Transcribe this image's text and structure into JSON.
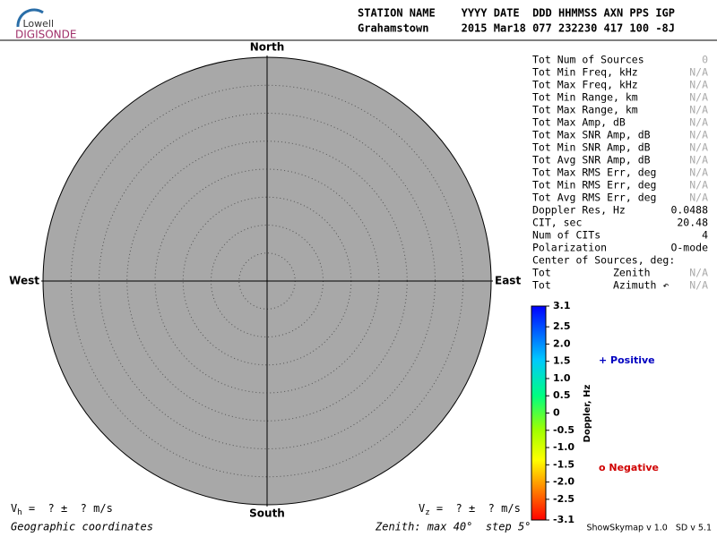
{
  "logo": {
    "top": "Lowell",
    "bottom": "DIGISONDE"
  },
  "header": {
    "line1": "STATION NAME    YYYY DATE  DDD HHMMSS AXN PPS IGP",
    "line2": "Grahamstown     2015 Mar18 077 232230 417 100 -8J"
  },
  "compass": {
    "north": "North",
    "south": "South",
    "east": "East",
    "west": "West"
  },
  "stats": [
    {
      "label": "Tot Num of Sources",
      "value": "0"
    },
    {
      "label": "Tot Min Freq, kHz",
      "value": "N/A"
    },
    {
      "label": "Tot Max Freq, kHz",
      "value": "N/A"
    },
    {
      "label": "Tot Min Range, km",
      "value": "N/A"
    },
    {
      "label": "Tot Max Range, km",
      "value": "N/A"
    },
    {
      "label": "Tot Max Amp, dB",
      "value": "N/A"
    },
    {
      "label": "Tot Max SNR Amp, dB",
      "value": "N/A"
    },
    {
      "label": "Tot Min SNR Amp, dB",
      "value": "N/A"
    },
    {
      "label": "Tot Avg SNR Amp, dB",
      "value": "N/A"
    },
    {
      "label": "Tot Max RMS Err, deg",
      "value": "N/A"
    },
    {
      "label": "Tot Min RMS Err, deg",
      "value": "N/A"
    },
    {
      "label": "Tot Avg RMS Err, deg",
      "value": "N/A"
    },
    {
      "label": "Doppler Res, Hz",
      "value": "0.0488"
    },
    {
      "label": "CIT, sec",
      "value": "20.48"
    },
    {
      "label": "Num of CITs",
      "value": "4"
    },
    {
      "label": "Polarization",
      "value": "O-mode"
    },
    {
      "label": "Center of Sources, deg:"
    },
    {
      "label": "Tot          Zenith",
      "value": "N/A"
    },
    {
      "label": "Tot          Azimuth ↶",
      "value": "N/A"
    }
  ],
  "colorbar": {
    "title": "Doppler, Hz",
    "ticks": [
      "3.1",
      "2.5",
      "2.0",
      "1.5",
      "1.0",
      "0.5",
      "0",
      "-0.5",
      "-1.0",
      "-1.5",
      "-2.0",
      "-2.5",
      "-3.1"
    ]
  },
  "legend": {
    "positive": "+ Positive",
    "negative": "o Negative"
  },
  "footer": {
    "vh": {
      "v": "V",
      "sub": "h",
      "rest": " =  ? ±  ? m/s"
    },
    "vz": {
      "v": "V",
      "sub": "z",
      "rest": " =  ? ±  ? m/s"
    },
    "coords": "Geographic coordinates",
    "zenith": "Zenith: max 40°  step 5°",
    "version": "ShowSkymap v 1.0   SD v 5.1"
  }
}
